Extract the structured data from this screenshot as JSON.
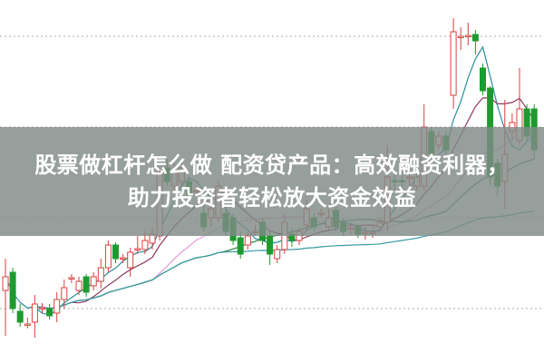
{
  "headline": {
    "line1": "股票做杠杆怎么做 配资贷产品：高效融资利器，",
    "line2": "助力投资者轻松放大资金效益"
  },
  "chart_data": {
    "type": "candlestick",
    "title": "",
    "grid": "horizontal dotted",
    "colors": {
      "up": "#d9413f",
      "down": "#1f9a2e",
      "ma_short": "#2a8f9c",
      "ma_mid": "#8b3a62",
      "ma_long": "#e39be0",
      "ma_trend": "#2f7d4a",
      "ma_base": "#3a9aa0",
      "grid": "#aaaaaa",
      "banner": "#808a86"
    },
    "moving_averages": [
      5,
      10,
      20,
      30,
      "cumulative"
    ],
    "ohlc": [
      [
        10.0,
        13.5,
        5.0,
        11.5
      ],
      [
        12.0,
        12.5,
        7.5,
        8.0
      ],
      [
        7.7,
        8.5,
        6.0,
        6.5
      ],
      [
        6.2,
        7.0,
        5.8,
        6.3
      ],
      [
        6.5,
        9.5,
        4.8,
        8.5
      ],
      [
        8.0,
        8.6,
        7.5,
        8.1
      ],
      [
        8.0,
        8.5,
        6.8,
        7.2
      ],
      [
        7.5,
        9.8,
        6.5,
        9.0
      ],
      [
        9.0,
        11.2,
        8.0,
        10.3
      ],
      [
        11.3,
        11.8,
        10.8,
        11.4
      ],
      [
        10.0,
        11.5,
        9.5,
        11.0
      ],
      [
        11.5,
        11.8,
        9.3,
        9.8
      ],
      [
        10.5,
        12.0,
        10.0,
        11.5
      ],
      [
        11.0,
        13.5,
        10.2,
        12.5
      ],
      [
        12.5,
        15.5,
        12.0,
        15.0
      ],
      [
        15.0,
        15.3,
        13.0,
        13.5
      ],
      [
        13.5,
        14.0,
        13.0,
        13.6
      ],
      [
        12.5,
        14.7,
        11.5,
        14.2
      ],
      [
        14.5,
        16.0,
        14.0,
        14.6
      ],
      [
        14.5,
        16.5,
        14.0,
        15.5
      ],
      [
        15.2,
        17.0,
        14.5,
        16.2
      ],
      [
        16.0,
        23.5,
        15.5,
        23.0
      ],
      [
        23.5,
        24.5,
        21.5,
        22.0
      ],
      [
        21.5,
        24.0,
        21.0,
        23.0
      ],
      [
        22.0,
        24.5,
        21.5,
        23.5
      ],
      [
        22.0,
        22.5,
        19.5,
        20.5
      ],
      [
        21.0,
        21.5,
        20.5,
        21.0
      ],
      [
        18.5,
        19.5,
        16.5,
        17.0
      ],
      [
        18.0,
        19.8,
        17.0,
        19.0
      ],
      [
        18.0,
        22.0,
        17.5,
        21.5
      ],
      [
        18.5,
        19.5,
        16.0,
        16.5
      ],
      [
        18.0,
        18.5,
        15.0,
        15.5
      ],
      [
        15.8,
        16.5,
        13.5,
        14.0
      ],
      [
        15.0,
        16.5,
        14.5,
        16.0
      ],
      [
        16.5,
        17.2,
        16.0,
        16.5
      ],
      [
        17.5,
        18.0,
        15.0,
        15.5
      ],
      [
        16.0,
        16.5,
        12.8,
        14.0
      ],
      [
        13.5,
        15.0,
        13.0,
        14.5
      ],
      [
        14.5,
        18.5,
        14.0,
        17.5
      ],
      [
        16.2,
        16.8,
        14.8,
        15.5
      ],
      [
        15.5,
        17.0,
        15.0,
        16.5
      ],
      [
        17.2,
        20.0,
        16.5,
        19.0
      ],
      [
        18.0,
        18.5,
        16.5,
        17.0
      ],
      [
        18.5,
        19.0,
        18.0,
        18.5
      ],
      [
        17.0,
        19.0,
        16.5,
        18.0
      ],
      [
        18.8,
        19.2,
        16.5,
        17.0
      ],
      [
        17.5,
        18.0,
        16.0,
        16.5
      ],
      [
        16.8,
        17.3,
        16.2,
        16.9
      ],
      [
        17.0,
        17.3,
        15.8,
        16.2
      ],
      [
        16.4,
        17.0,
        15.6,
        16.4
      ],
      [
        16.3,
        17.0,
        15.8,
        16.4
      ],
      [
        17.0,
        18.0,
        16.5,
        17.5
      ],
      [
        17.5,
        26.0,
        16.5,
        22.5
      ],
      [
        22.1,
        23.0,
        21.0,
        22.0
      ],
      [
        22.1,
        23.0,
        21.0,
        22.0
      ],
      [
        22.5,
        23.2,
        21.5,
        22.5
      ],
      [
        21.5,
        23.5,
        21.0,
        22.5
      ],
      [
        21.5,
        30.5,
        21.0,
        28.0
      ],
      [
        27.5,
        28.0,
        24.5,
        25.0
      ],
      [
        26.0,
        27.5,
        25.5,
        27.0
      ],
      [
        27.0,
        27.5,
        25.0,
        25.5
      ],
      [
        31.5,
        40.0,
        30.0,
        38.5
      ],
      [
        38.0,
        39.0,
        36.5,
        38.0
      ],
      [
        38.0,
        39.5,
        37.0,
        38.1
      ],
      [
        38.2,
        38.7,
        36.0,
        37.5
      ],
      [
        34.5,
        35.0,
        31.5,
        32.0
      ],
      [
        32.3,
        32.5,
        21.5,
        22.5
      ],
      [
        24.0,
        24.5,
        20.5,
        21.5
      ],
      [
        22.0,
        31.0,
        19.0,
        25.0
      ],
      [
        27.5,
        29.5,
        26.5,
        28.5
      ],
      [
        26.5,
        34.5,
        26.0,
        30.0
      ],
      [
        30.0,
        30.5,
        26.5,
        27.0
      ],
      [
        30.0,
        30.5,
        24.5,
        25.5
      ]
    ],
    "gridlines": [
      38.0,
      28.0,
      18.0,
      8.0
    ]
  }
}
